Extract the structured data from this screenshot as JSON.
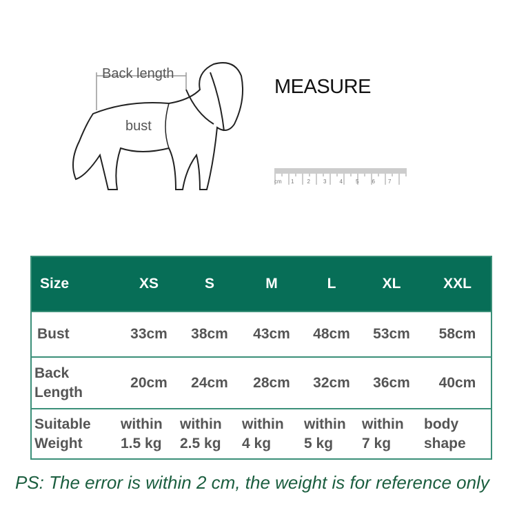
{
  "diagram": {
    "back_length_label": "Back length",
    "bust_label": "bust"
  },
  "measure_title": "MEASURE",
  "ruler": {
    "unit": "cm",
    "labels": [
      "1",
      "2",
      "3",
      "4",
      "5",
      "6",
      "7"
    ]
  },
  "table": {
    "header": [
      "Size",
      "XS",
      "S",
      "M",
      "L",
      "XL",
      "XXL"
    ],
    "rows": [
      {
        "label": [
          "Bust"
        ],
        "cells": [
          [
            "33cm"
          ],
          [
            "38cm"
          ],
          [
            "43cm"
          ],
          [
            "48cm"
          ],
          [
            "53cm"
          ],
          [
            "58cm"
          ]
        ]
      },
      {
        "label": [
          "Back",
          "Length"
        ],
        "cells": [
          [
            "20cm"
          ],
          [
            "24cm"
          ],
          [
            "28cm"
          ],
          [
            "32cm"
          ],
          [
            "36cm"
          ],
          [
            "40cm"
          ]
        ]
      },
      {
        "label": [
          "Suitable",
          "Weight"
        ],
        "cells": [
          [
            "within",
            "1.5 kg"
          ],
          [
            "within",
            "2.5 kg"
          ],
          [
            "within",
            "4 kg"
          ],
          [
            "within",
            "5 kg"
          ],
          [
            "within",
            "7 kg"
          ],
          [
            "body",
            "shape"
          ]
        ]
      }
    ]
  },
  "colors": {
    "header_bg": "#076e57",
    "note_text": "#1b5e3f"
  },
  "note": "PS: The error is within 2 cm, the weight is for reference only"
}
